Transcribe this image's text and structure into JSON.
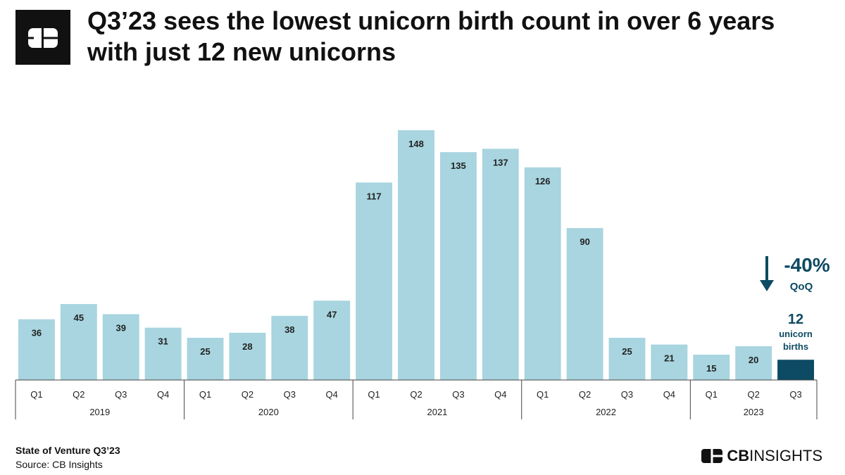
{
  "header": {
    "title_line1": "Q3’23 sees the lowest unicorn birth count in over 6 years",
    "title_line2": "with just 12 new unicorns"
  },
  "chart_data": {
    "type": "bar",
    "categories": [
      "Q1",
      "Q2",
      "Q3",
      "Q4",
      "Q1",
      "Q2",
      "Q3",
      "Q4",
      "Q1",
      "Q2",
      "Q3",
      "Q4",
      "Q1",
      "Q2",
      "Q3",
      "Q4",
      "Q1",
      "Q2",
      "Q3"
    ],
    "years": [
      {
        "label": "2019",
        "quarters": 4
      },
      {
        "label": "2020",
        "quarters": 4
      },
      {
        "label": "2021",
        "quarters": 4
      },
      {
        "label": "2022",
        "quarters": 4
      },
      {
        "label": "2023",
        "quarters": 3
      }
    ],
    "values": [
      36,
      45,
      39,
      31,
      25,
      28,
      38,
      47,
      117,
      148,
      135,
      137,
      126,
      90,
      25,
      21,
      15,
      20,
      12
    ],
    "data_labels": [
      "36",
      "45",
      "39",
      "31",
      "25",
      "28",
      "38",
      "47",
      "117",
      "148",
      "135",
      "137",
      "126",
      "90",
      "25",
      "21",
      "15",
      "20",
      ""
    ],
    "highlight_index": 18,
    "ylim": [
      0,
      148
    ],
    "grid": false,
    "colors": {
      "bar": "#a8d5df",
      "highlight": "#0d4a63",
      "callout": "#0d4a63",
      "axis": "#444444",
      "label": "#222222"
    },
    "annotations": {
      "change": "-40%",
      "change_unit": "QoQ",
      "highlight_value": "12",
      "highlight_caption_1": "unicorn",
      "highlight_caption_2": "births"
    }
  },
  "footer": {
    "report": "State of Venture Q3’23",
    "source": "Source: CB Insights",
    "brand_cb": "CB",
    "brand_insights": "INSIGHTS"
  }
}
